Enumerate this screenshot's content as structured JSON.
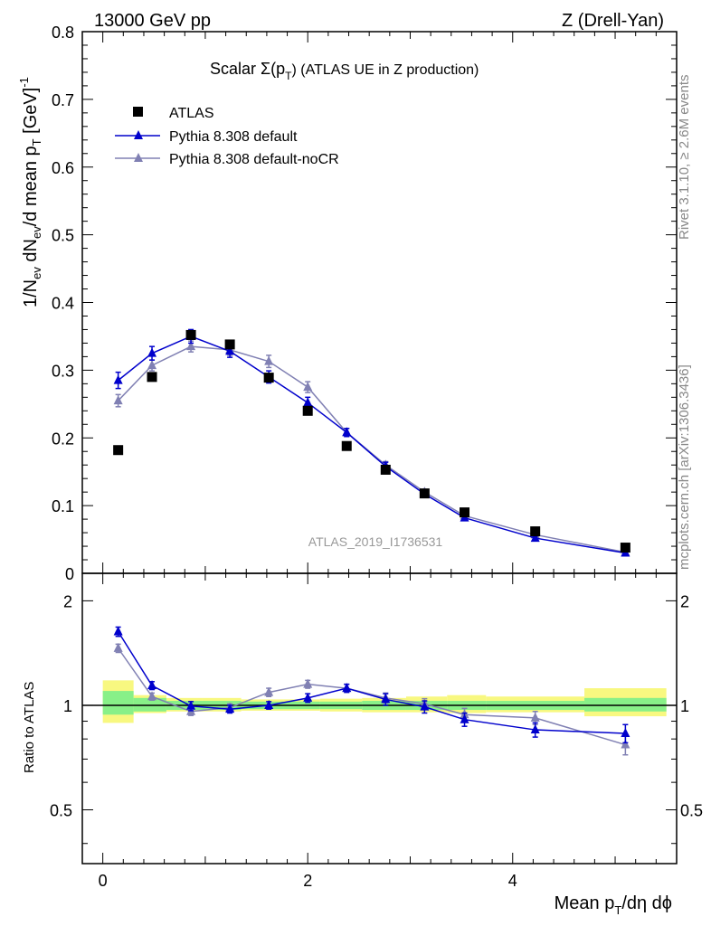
{
  "header": {
    "left": "13000 GeV pp",
    "right": "Z (Drell-Yan)"
  },
  "side_labels": {
    "rivet": "Rivet 3.1.10, ≥ 2.6M events",
    "mcplots": "mcplots.cern.ch [arXiv:1306.3436]"
  },
  "watermark": "ATLAS_2019_I1736531",
  "main_title": {
    "prefix": "Scalar Σ(p",
    "sub": "T",
    "suffix": ")  (ATLAS UE in Z production)"
  },
  "axes": {
    "xlabel": {
      "a": "Mean p",
      "sub": "T",
      "b": "/dη dϕ"
    },
    "ylabel_main": "1/N_ev dN_ev/d mean p_T [GeV]^-1",
    "ylabel_ratio": "Ratio to ATLAS",
    "x_ticks": [
      "0",
      "2",
      "4"
    ],
    "y_ticks_main": [
      "0",
      "0.1",
      "0.2",
      "0.3",
      "0.4",
      "0.5",
      "0.6",
      "0.7",
      "0.8"
    ],
    "y_ticks_ratio": [
      "0.5",
      "1",
      "2"
    ]
  },
  "legend": {
    "atlas": "ATLAS",
    "default": "Pythia 8.308 default",
    "nocr": "Pythia 8.308 default-noCR"
  },
  "colors": {
    "data": "#000000",
    "default": "#0000cc",
    "nocr": "#8080b3",
    "band_inner": "#88f088",
    "band_outer": "#f8f880"
  },
  "chart_data": {
    "type": "scatter",
    "x_range": [
      -0.2,
      5.6
    ],
    "main": {
      "ylim": [
        0,
        0.8
      ],
      "x": [
        0.15,
        0.48,
        0.86,
        1.24,
        1.62,
        2.0,
        2.38,
        2.76,
        3.14,
        3.53,
        4.22,
        5.1
      ],
      "series": [
        {
          "name": "ATLAS",
          "marker": "square",
          "values": [
            0.182,
            0.29,
            0.352,
            0.338,
            0.289,
            0.24,
            0.188,
            0.153,
            0.118,
            0.09,
            0.062,
            0.038
          ]
        },
        {
          "name": "Pythia 8.308 default",
          "marker": "triangle",
          "values": [
            0.285,
            0.325,
            0.35,
            0.328,
            0.29,
            0.252,
            0.208,
            0.158,
            0.117,
            0.082,
            0.052,
            0.03
          ],
          "errors": [
            0.012,
            0.01,
            0.01,
            0.009,
            0.009,
            0.008,
            0.006,
            0.006,
            0.004,
            0.004,
            0.003,
            0.002
          ]
        },
        {
          "name": "Pythia 8.308 default-noCR",
          "marker": "triangle",
          "values": [
            0.255,
            0.307,
            0.335,
            0.33,
            0.313,
            0.275,
            0.208,
            0.16,
            0.12,
            0.085,
            0.057,
            0.031
          ],
          "errors": [
            0.009,
            0.008,
            0.008,
            0.008,
            0.009,
            0.008,
            0.006,
            0.005,
            0.004,
            0.004,
            0.003,
            0.002
          ]
        }
      ]
    },
    "ratio": {
      "ylim": [
        0.35,
        2.4
      ],
      "log_y": true,
      "band_edges": [
        0.0,
        0.3,
        0.62,
        0.97,
        1.35,
        1.76,
        2.12,
        2.53,
        2.96,
        3.36,
        3.74,
        4.7,
        5.5
      ],
      "band_inner": [
        [
          0.94,
          1.1
        ],
        [
          0.96,
          1.05
        ],
        [
          0.97,
          1.03
        ],
        [
          0.97,
          1.03
        ],
        [
          0.975,
          1.025
        ],
        [
          0.975,
          1.025
        ],
        [
          0.975,
          1.025
        ],
        [
          0.97,
          1.03
        ],
        [
          0.97,
          1.03
        ],
        [
          0.97,
          1.03
        ],
        [
          0.97,
          1.03
        ],
        [
          0.96,
          1.05
        ]
      ],
      "band_outer": [
        [
          0.89,
          1.18
        ],
        [
          0.95,
          1.07
        ],
        [
          0.96,
          1.05
        ],
        [
          0.96,
          1.05
        ],
        [
          0.965,
          1.04
        ],
        [
          0.965,
          1.04
        ],
        [
          0.96,
          1.045
        ],
        [
          0.955,
          1.05
        ],
        [
          0.955,
          1.06
        ],
        [
          0.95,
          1.07
        ],
        [
          0.955,
          1.06
        ],
        [
          0.93,
          1.12
        ]
      ],
      "series": [
        {
          "name": "Pythia 8.308 default",
          "values": [
            1.63,
            1.14,
            0.995,
            0.975,
            1.0,
            1.05,
            1.12,
            1.04,
            0.99,
            0.91,
            0.85,
            0.83
          ],
          "errors": [
            0.05,
            0.03,
            0.03,
            0.025,
            0.025,
            0.03,
            0.03,
            0.04,
            0.04,
            0.04,
            0.04,
            0.05
          ]
        },
        {
          "name": "Pythia 8.308 default-noCR",
          "values": [
            1.46,
            1.06,
            0.96,
            0.985,
            1.09,
            1.15,
            1.12,
            1.05,
            1.01,
            0.94,
            0.92,
            0.77
          ],
          "errors": [
            0.04,
            0.025,
            0.025,
            0.025,
            0.03,
            0.03,
            0.03,
            0.035,
            0.035,
            0.04,
            0.04,
            0.05
          ]
        }
      ]
    }
  }
}
